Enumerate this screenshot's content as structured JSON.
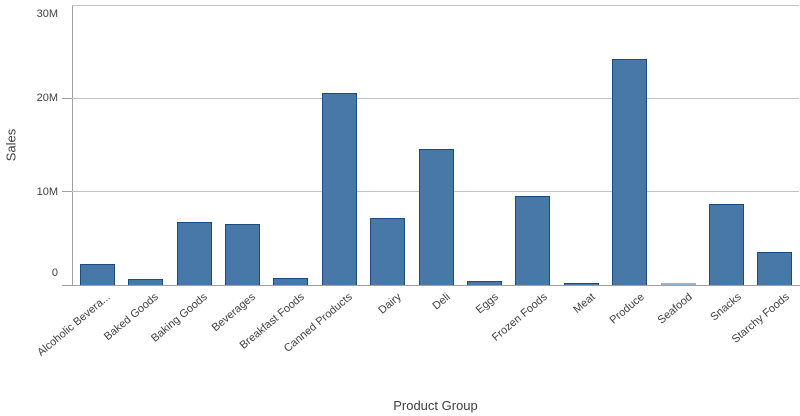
{
  "chart_data": {
    "type": "bar",
    "title": "",
    "xlabel": "Product Group",
    "ylabel": "Sales",
    "unit": "millions",
    "ylim": [
      0,
      30
    ],
    "grid": true,
    "legend": false,
    "yticks": [
      {
        "value": 0,
        "label": "0"
      },
      {
        "value": 10,
        "label": "10M"
      },
      {
        "value": 20,
        "label": "20M"
      },
      {
        "value": 30,
        "label": "30M"
      }
    ],
    "categories": [
      "Alcoholic Bevera...",
      "Baked Goods",
      "Baking Goods",
      "Beverages",
      "Breakfast Foods",
      "Canned Products",
      "Dairy",
      "Deli",
      "Eggs",
      "Frozen Foods",
      "Meat",
      "Produce",
      "Seafood",
      "Snacks",
      "Starchy Foods"
    ],
    "values": [
      2.3,
      0.6,
      6.8,
      6.5,
      0.8,
      20.6,
      7.2,
      14.6,
      0.45,
      9.5,
      0.25,
      24.2,
      0.18,
      8.7,
      3.5
    ]
  },
  "style": {
    "bar_fill": "#4878a8",
    "bar_border": "#1b4c80",
    "bar_fill_tiny": "#96b5d6",
    "gridline_color": "#c2c2c2",
    "axis_line_color": "#a0a0a0",
    "text_color": "#404040",
    "background": "#ffffff"
  }
}
